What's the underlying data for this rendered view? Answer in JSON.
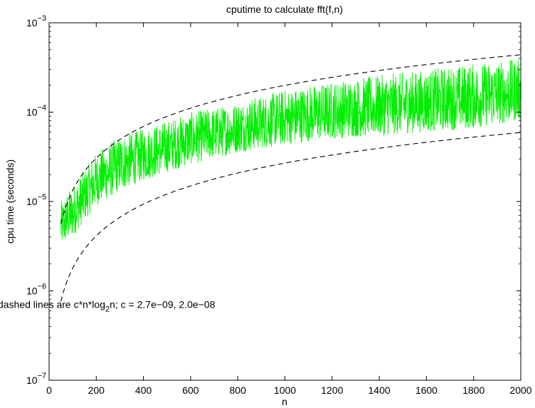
{
  "chart_data": {
    "type": "line",
    "title": "cputime to calculate fft(f,n)",
    "xlabel": "n",
    "ylabel": "cpu time (seconds)",
    "xlim": [
      0,
      2000
    ],
    "ylim": [
      1e-07,
      0.001
    ],
    "yscale": "log",
    "grid": false,
    "x_ticks": [
      0,
      200,
      400,
      600,
      800,
      1000,
      1200,
      1400,
      1600,
      1800,
      2000
    ],
    "y_ticks": [
      {
        "value": 1e-07,
        "base": "10",
        "exp": "−7"
      },
      {
        "value": 1e-06,
        "base": "10",
        "exp": "−6"
      },
      {
        "value": 1e-05,
        "base": "10",
        "exp": "−5"
      },
      {
        "value": 0.0001,
        "base": "10",
        "exp": "−4"
      },
      {
        "value": 0.001,
        "base": "10",
        "exp": "−3"
      }
    ],
    "annotation": {
      "x": 380,
      "y": 6.3e-07,
      "prefix": "dashed lines are  c*n*log",
      "subscript": "2",
      "suffix": "n;  c = 2.7e−09, 2.0e−08"
    },
    "series": [
      {
        "color": "#00ee00",
        "style": "solid",
        "x_range": [
          50,
          2000
        ],
        "envelope": {
          "note": "dense noisy line; per-n min/max in seconds",
          "x": [
            50,
            100,
            200,
            300,
            400,
            600,
            800,
            1000,
            1200,
            1400,
            1600,
            1800,
            2000
          ],
          "min": [
            3e-06,
            4e-06,
            9e-06,
            1.3e-05,
            1.7e-05,
            2.6e-05,
            3.5e-05,
            4.3e-05,
            5e-05,
            5.4e-05,
            6e-05,
            6.5e-05,
            8e-05
          ],
          "max": [
            1e-05,
            1.5e-05,
            3.5e-05,
            5.5e-05,
            6.5e-05,
            0.0001,
            0.00013,
            0.00018,
            0.00022,
            0.00026,
            0.0003,
            0.00035,
            0.0004
          ]
        }
      },
      {
        "color": "#000000",
        "style": "dashed",
        "c": 2.7e-09,
        "x_range": [
          50,
          2000
        ]
      },
      {
        "color": "#000000",
        "style": "dashed",
        "c": 2e-08,
        "x_range": [
          50,
          2000
        ]
      }
    ]
  }
}
